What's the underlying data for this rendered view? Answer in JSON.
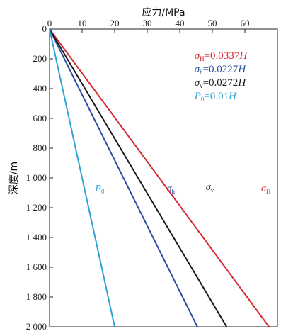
{
  "chart_data": {
    "type": "line",
    "title": "应力/MPa",
    "xlabel": "应力/MPa",
    "ylabel": "深度/m",
    "xlim": [
      0,
      70
    ],
    "ylim": [
      0,
      2000
    ],
    "y_inverted": true,
    "x_axis_position": "top",
    "x_ticks": [
      0,
      10,
      20,
      30,
      40,
      50,
      60
    ],
    "x_tick_labels": [
      "0",
      "10",
      "20",
      "30",
      "40",
      "50",
      "60"
    ],
    "y_ticks": [
      0,
      200,
      400,
      600,
      800,
      1000,
      1200,
      1400,
      1600,
      1800,
      2000
    ],
    "y_tick_labels": [
      "0",
      "200",
      "400",
      "600",
      "800",
      "1 000",
      "1 200",
      "1 400",
      "1 600",
      "1 800",
      "2 000"
    ],
    "grid": false,
    "legend_placement": "top-right",
    "series": [
      {
        "name": "σH",
        "symbol": "σ",
        "subscript": "H",
        "coefficient": "=0.0337",
        "var": "H",
        "color": "#d42a30",
        "x": [
          0,
          67.4
        ],
        "y": [
          0,
          2000
        ],
        "label_at": [
          65,
          1090
        ]
      },
      {
        "name": "σh",
        "symbol": "σ",
        "subscript": "h",
        "coefficient": "=0.0227",
        "var": "H",
        "color": "#2b4ea2",
        "x": [
          0,
          45.4
        ],
        "y": [
          0,
          2000
        ],
        "label_at": [
          36,
          1090
        ]
      },
      {
        "name": "σv",
        "symbol": "σ",
        "subscript": "v",
        "coefficient": "=0.0272",
        "var": "H",
        "color": "#1a1a1a",
        "x": [
          0,
          54.4
        ],
        "y": [
          0,
          2000
        ],
        "label_at": [
          48,
          1080
        ]
      },
      {
        "name": "P0",
        "symbol": "P",
        "subscript": "0",
        "coefficient": "=0.01",
        "var": "H",
        "color": "#2ea3d6",
        "x": [
          0,
          20
        ],
        "y": [
          0,
          2000
        ],
        "label_at": [
          14,
          1090
        ]
      }
    ]
  }
}
